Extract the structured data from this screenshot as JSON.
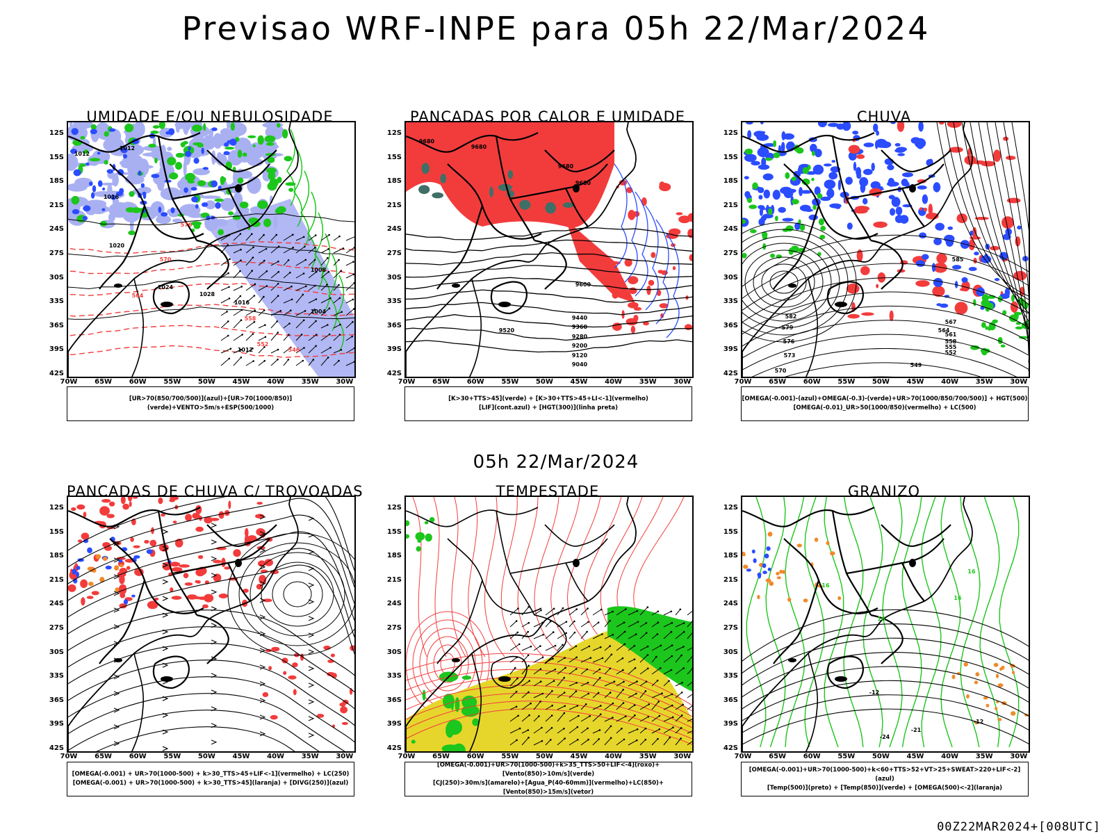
{
  "title": "Previsao WRF-INPE  para 05h 22/Mar/2024",
  "middle_title": "05h 22/Mar/2024",
  "footer": "00Z22MAR2024+[008UTC]",
  "lat_labels": [
    "12S",
    "15S",
    "18S",
    "21S",
    "24S",
    "27S",
    "30S",
    "33S",
    "36S",
    "39S",
    "42S"
  ],
  "lon_labels": [
    "70W",
    "65W",
    "60W",
    "55W",
    "50W",
    "45W",
    "40W",
    "35W",
    "30W"
  ],
  "colors": {
    "blue": "#2b4cff",
    "lavender": "#a9b0f2",
    "green": "#1cc61c",
    "red": "#f23c3c",
    "yellow": "#e6d62c",
    "teal": "#3f6f66",
    "orange": "#f08a2a"
  },
  "panels": [
    {
      "title": "UMIDADE E/OU NEBULOSIDADE",
      "legend": [
        "[UR>70(850/700/500)](azul)+[UR>70(1000/850)](verde)+VENTO>5m/s+ESP(500/1000)"
      ],
      "labels": [
        {
          "t": "1012",
          "c": "#000"
        },
        {
          "t": "1012",
          "c": "#000"
        },
        {
          "t": "1016",
          "c": "#000"
        },
        {
          "t": "1020",
          "c": "#000"
        },
        {
          "t": "1024",
          "c": "#000"
        },
        {
          "t": "1028",
          "c": "#000"
        },
        {
          "t": "1016",
          "c": "#000"
        },
        {
          "t": "1008",
          "c": "#000"
        },
        {
          "t": "1004",
          "c": "#000"
        },
        {
          "t": "1012",
          "c": "#000"
        },
        {
          "t": "564",
          "c": "#f23c3c"
        },
        {
          "t": "570",
          "c": "#f23c3c"
        },
        {
          "t": "576",
          "c": "#f23c3c"
        },
        {
          "t": "558",
          "c": "#f23c3c"
        },
        {
          "t": "546",
          "c": "#f23c3c"
        },
        {
          "t": "552",
          "c": "#f23c3c"
        }
      ]
    },
    {
      "title": "PANCADAS POR CALOR E UMIDADE",
      "legend": [
        "[K>30+TTS>45](verde) + [K>30+TTS>45+LI<-1](vermelho)",
        "[LIF](cont.azul) + [HGT(300)](linha preta)"
      ],
      "labels": [
        {
          "t": "9680",
          "c": "#000"
        },
        {
          "t": "9680",
          "c": "#000"
        },
        {
          "t": "9680",
          "c": "#000"
        },
        {
          "t": "9680",
          "c": "#000"
        },
        {
          "t": "9600",
          "c": "#000"
        },
        {
          "t": "9520",
          "c": "#000"
        },
        {
          "t": "9440",
          "c": "#000"
        },
        {
          "t": "9360",
          "c": "#000"
        },
        {
          "t": "9280",
          "c": "#000"
        },
        {
          "t": "9200",
          "c": "#000"
        },
        {
          "t": "9120",
          "c": "#000"
        },
        {
          "t": "9040",
          "c": "#000"
        }
      ]
    },
    {
      "title": "CHUVA",
      "legend": [
        "[OMEGA(-0.001)-(azul)+OMEGA(-0.3)-(verde)+UR>70(1000/850/700/500)] + HGT(500)",
        "[OMEGA(-0.01)_UR>50(1000/850)(vermelho) + LC(500)"
      ],
      "labels": [
        {
          "t": "585",
          "c": "#000"
        },
        {
          "t": "582",
          "c": "#000"
        },
        {
          "t": "579",
          "c": "#000"
        },
        {
          "t": "576",
          "c": "#000"
        },
        {
          "t": "573",
          "c": "#000"
        },
        {
          "t": "570",
          "c": "#000"
        },
        {
          "t": "567",
          "c": "#000"
        },
        {
          "t": "564",
          "c": "#000"
        },
        {
          "t": "561",
          "c": "#000"
        },
        {
          "t": "558",
          "c": "#000"
        },
        {
          "t": "555",
          "c": "#000"
        },
        {
          "t": "552",
          "c": "#000"
        },
        {
          "t": "549",
          "c": "#000"
        }
      ]
    },
    {
      "title": "PANCADAS DE CHUVA C/ TROVOADAS",
      "legend": [
        "[OMEGA(-0.001) + UR>70(1000-500) + k>30_TTS>45+LIF<-1](vermelho) + LC(250)",
        "[OMEGA(-0.001) + UR>70(1000-500) + k>30_TTS>45](laranja) + [DIVG(250)](azul)"
      ],
      "labels": []
    },
    {
      "title": "TEMPESTADE",
      "legend": [
        "[OMEGA(-0.001)+UR>70(1000-500)+k>35_TTS>50+LIF<-4](roxo)+[Vento(850)>10m/s](verde)",
        "[CJ(250)>30m/s](amarelo)+[Agua_P(40-60mm)](vermelho)+LC(850)+[Vento(850)>15m/s](vetor)"
      ],
      "labels": []
    },
    {
      "title": "GRANIZO",
      "legend": [
        "[OMEGA(-0.001)+UR>70(1000-500)+k<60+TTS>52+VT>25+SWEAT>220+LIF<-2](azul)",
        "[Temp(500)](preto) + [Temp(850)](verde) + [OMEGA(500)<-2](laranja)"
      ],
      "labels": [
        {
          "t": "-12",
          "c": "#000"
        },
        {
          "t": "-12",
          "c": "#000"
        },
        {
          "t": "-24",
          "c": "#000"
        },
        {
          "t": "-21",
          "c": "#000"
        },
        {
          "t": "16",
          "c": "#1cc61c"
        },
        {
          "t": "16",
          "c": "#1cc61c"
        },
        {
          "t": "16",
          "c": "#1cc61c"
        },
        {
          "t": "16",
          "c": "#1cc61c"
        }
      ]
    }
  ]
}
